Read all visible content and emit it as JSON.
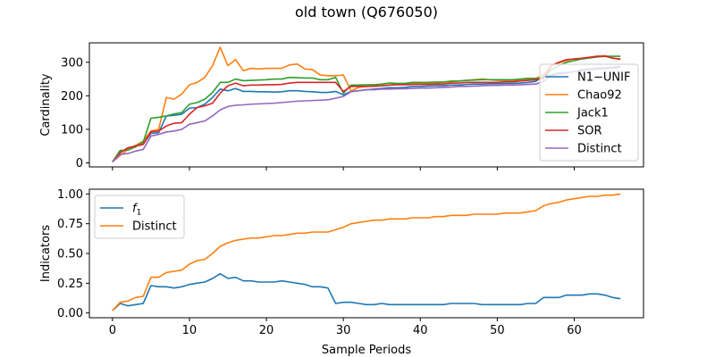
{
  "chart_data": {
    "type": "line",
    "title": "old town (Q676050)",
    "xlabel": "Sample Periods",
    "xlim": [
      -3,
      69
    ],
    "xticks": [
      0,
      10,
      20,
      30,
      40,
      50,
      60
    ],
    "panels": [
      {
        "ylabel": "Cardinality",
        "ylim": [
          -12,
          358
        ],
        "yticks": [
          0,
          100,
          200,
          300
        ],
        "legend": "right",
        "series": [
          {
            "name": "N1−UNIF",
            "color": "#1f77b4",
            "values": [
              3,
              33,
              42,
              50,
              56,
              88,
              90,
              140,
              142,
              145,
              163,
              165,
              175,
              195,
              220,
              215,
              222,
              213,
              213,
              212,
              212,
              211,
              212,
              215,
              215,
              213,
              212,
              210,
              210,
              213,
              203,
              213,
              215,
              218,
              220,
              222,
              224,
              224,
              225,
              228,
              228,
              229,
              230,
              230,
              232,
              232,
              234,
              235,
              235,
              236,
              236,
              237,
              237,
              238,
              240,
              243,
              260,
              262,
              268,
              270,
              272,
              278,
              280,
              282,
              283,
              285,
              288
            ]
          },
          {
            "name": "Chao92",
            "color": "#ff7f0e",
            "values": [
              3,
              22,
              40,
              52,
              65,
              95,
              100,
              195,
              190,
              205,
              233,
              240,
              255,
              290,
              345,
              290,
              308,
              275,
              282,
              280,
              282,
              282,
              282,
              292,
              295,
              280,
              278,
              262,
              260,
              260,
              262,
              215,
              225,
              228,
              228,
              230,
              232,
              235,
              236,
              236,
              236,
              236,
              238,
              240,
              242,
              244,
              246,
              248,
              250,
              248,
              246,
              246,
              246,
              248,
              248,
              252,
              262,
              290,
              298,
              305,
              310,
              312,
              315,
              318,
              320,
              313,
              308
            ]
          },
          {
            "name": "Jack1",
            "color": "#2ca02c",
            "values": [
              3,
              37,
              38,
              48,
              62,
              133,
              136,
              140,
              146,
              150,
              175,
              180,
              190,
              210,
              240,
              240,
              250,
              245,
              246,
              247,
              248,
              250,
              250,
              255,
              254,
              253,
              253,
              248,
              248,
              255,
              208,
              232,
              232,
              233,
              233,
              235,
              238,
              237,
              237,
              240,
              240,
              240,
              241,
              241,
              244,
              244,
              246,
              247,
              248,
              248,
              248,
              248,
              248,
              250,
              252,
              252,
              253,
              278,
              290,
              300,
              305,
              310,
              313,
              316,
              318,
              318,
              318
            ]
          },
          {
            "name": "SOR",
            "color": "#d62728",
            "values": [
              3,
              30,
              45,
              50,
              55,
              93,
              95,
              110,
              118,
              120,
              145,
              165,
              170,
              178,
              208,
              230,
              238,
              230,
              232,
              232,
              233,
              233,
              234,
              238,
              240,
              240,
              240,
              240,
              240,
              240,
              213,
              228,
              228,
              228,
              229,
              230,
              232,
              233,
              233,
              234,
              234,
              234,
              235,
              235,
              238,
              238,
              240,
              240,
              240,
              240,
              240,
              242,
              242,
              244,
              246,
              248,
              252,
              290,
              300,
              308,
              310,
              312,
              315,
              318,
              318,
              312,
              310
            ]
          },
          {
            "name": "Distinct",
            "color": "#9467bd",
            "values": [
              3,
              25,
              28,
              35,
              40,
              80,
              85,
              92,
              95,
              100,
              115,
              120,
              125,
              140,
              158,
              168,
              172,
              173,
              175,
              176,
              177,
              178,
              180,
              182,
              184,
              185,
              186,
              187,
              188,
              193,
              198,
              212,
              215,
              218,
              218,
              220,
              220,
              221,
              221,
              222,
              223,
              223,
              224,
              225,
              226,
              228,
              228,
              229,
              230,
              231,
              231,
              232,
              232,
              233,
              234,
              235,
              243,
              260,
              265,
              268,
              272,
              275,
              278,
              280,
              281,
              283,
              285
            ]
          }
        ]
      },
      {
        "ylabel": "Indicators",
        "ylim": [
          -0.04,
          1.04
        ],
        "yticks": [
          0.0,
          0.25,
          0.5,
          0.75,
          1.0
        ],
        "legend": "upper left",
        "series": [
          {
            "name": "f1",
            "color": "#1f77b4",
            "values": [
              0.02,
              0.08,
              0.06,
              0.07,
              0.08,
              0.23,
              0.22,
              0.22,
              0.21,
              0.22,
              0.24,
              0.25,
              0.26,
              0.29,
              0.33,
              0.29,
              0.3,
              0.27,
              0.27,
              0.26,
              0.26,
              0.26,
              0.27,
              0.26,
              0.25,
              0.24,
              0.22,
              0.22,
              0.21,
              0.08,
              0.09,
              0.09,
              0.08,
              0.07,
              0.07,
              0.08,
              0.07,
              0.07,
              0.07,
              0.07,
              0.07,
              0.07,
              0.07,
              0.07,
              0.08,
              0.08,
              0.08,
              0.08,
              0.07,
              0.07,
              0.07,
              0.07,
              0.07,
              0.07,
              0.08,
              0.08,
              0.13,
              0.13,
              0.13,
              0.15,
              0.15,
              0.15,
              0.16,
              0.16,
              0.15,
              0.13,
              0.12
            ]
          },
          {
            "name": "Distinct",
            "color": "#ff7f0e",
            "values": [
              0.02,
              0.09,
              0.1,
              0.13,
              0.14,
              0.3,
              0.3,
              0.34,
              0.35,
              0.36,
              0.41,
              0.44,
              0.45,
              0.5,
              0.56,
              0.59,
              0.61,
              0.62,
              0.63,
              0.63,
              0.64,
              0.65,
              0.65,
              0.66,
              0.67,
              0.67,
              0.68,
              0.68,
              0.68,
              0.7,
              0.72,
              0.75,
              0.76,
              0.77,
              0.78,
              0.78,
              0.79,
              0.79,
              0.79,
              0.8,
              0.8,
              0.8,
              0.81,
              0.81,
              0.82,
              0.82,
              0.82,
              0.83,
              0.83,
              0.83,
              0.83,
              0.84,
              0.84,
              0.84,
              0.85,
              0.86,
              0.9,
              0.92,
              0.93,
              0.95,
              0.96,
              0.97,
              0.98,
              0.98,
              0.99,
              0.99,
              1.0
            ]
          }
        ]
      }
    ]
  }
}
